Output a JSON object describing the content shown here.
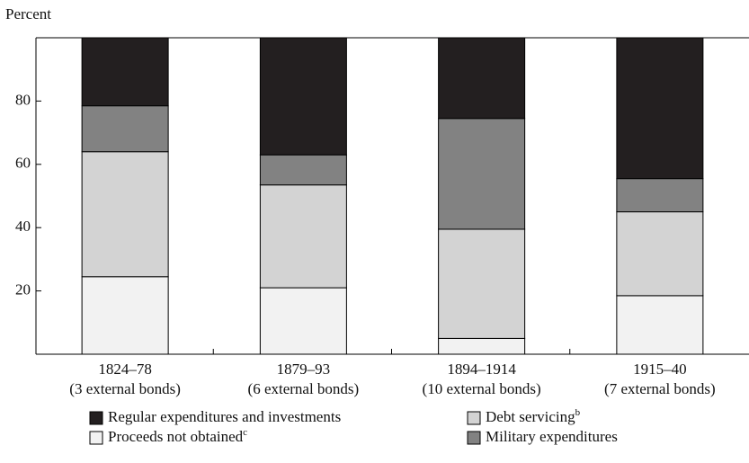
{
  "chart_data": {
    "type": "stacked_bar",
    "y_label": "Percent",
    "categories": [
      [
        "1824–78",
        "(3 external bonds)"
      ],
      [
        "1879–93",
        "(6 external bonds)"
      ],
      [
        "1894–1914",
        "(10 external bonds)"
      ],
      [
        "1915–40",
        "(7 external bonds)"
      ]
    ],
    "series": [
      {
        "name": "Proceeds not obtained",
        "note": "c",
        "color": "#f2f2f2",
        "values": [
          24.5,
          21,
          5,
          18.5
        ]
      },
      {
        "name": "Debt servicing",
        "note": "b",
        "color": "#d3d3d3",
        "values": [
          39.5,
          32.5,
          34.5,
          26.5
        ]
      },
      {
        "name": "Military expenditures",
        "color": "#828282",
        "values": [
          14.5,
          9.5,
          35,
          10.5
        ]
      },
      {
        "name": "Regular expenditures and investments",
        "color": "#231f20",
        "values": [
          21.5,
          37,
          25.5,
          44.5
        ]
      }
    ],
    "ylim": [
      0,
      100
    ],
    "yticks": [
      20,
      40,
      60,
      80
    ]
  }
}
